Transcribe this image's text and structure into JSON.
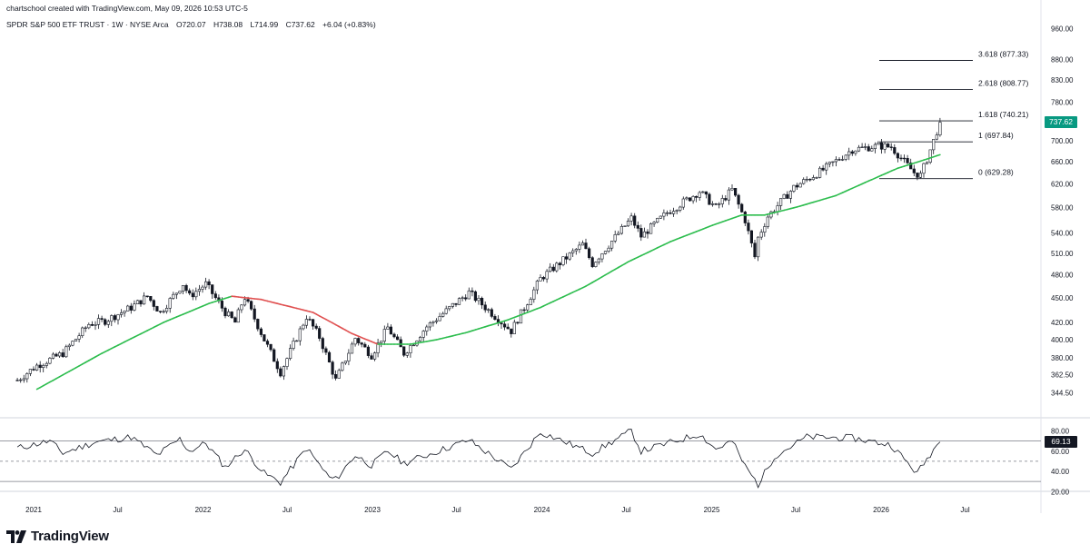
{
  "header": {
    "credit": "chartschool created with TradingView.com, May 09, 2026 10:53 UTC-5",
    "symbol": "SPDR S&P 500 ETF TRUST · 1W · NYSE Arca",
    "open": "O720.07",
    "high": "H738.08",
    "low": "L714.99",
    "close": "C737.62",
    "change": "+6.04 (+0.83%)"
  },
  "brand": {
    "name": "TradingView",
    "icon": "tradingview-logo-icon"
  },
  "colors": {
    "up_candle": "#131722",
    "ma_rising": "#2dbd4e",
    "ma_falling": "#e05050",
    "price_tag": "#089981",
    "rsi_tag": "#131722",
    "fib_line": "#131722"
  },
  "price_tag": "737.62",
  "rsi_tag": "69.13",
  "chart_data": [
    {
      "type": "candlestick",
      "title": "SPDR S&P 500 ETF TRUST · 1W · NYSE Arca",
      "scale": "log",
      "y_ticks": [
        "960.00",
        "880.00",
        "830.00",
        "780.00",
        "740.00",
        "700.00",
        "660.00",
        "620.00",
        "580.00",
        "540.00",
        "510.00",
        "480.00",
        "450.00",
        "420.00",
        "400.00",
        "380.00",
        "362.50",
        "344.50"
      ],
      "x_ticks": [
        "2021",
        "Jul",
        "2022",
        "Jul",
        "2023",
        "Jul",
        "2024",
        "Jul",
        "2025",
        "Jul",
        "2026",
        "Jul"
      ],
      "x_tick_dates": [
        "2021-01-01",
        "2021-07-01",
        "2022-01-01",
        "2022-07-01",
        "2023-01-01",
        "2023-07-01",
        "2024-01-01",
        "2024-07-01",
        "2025-01-01",
        "2025-07-01",
        "2026-01-01",
        "2026-07-01"
      ],
      "price_path": [
        [
          "2020-11-27",
          357
        ],
        [
          "2021-01-08",
          372
        ],
        [
          "2021-03-05",
          385
        ],
        [
          "2021-04-30",
          418
        ],
        [
          "2021-06-04",
          422
        ],
        [
          "2021-07-30",
          438
        ],
        [
          "2021-09-03",
          452
        ],
        [
          "2021-10-01",
          432
        ],
        [
          "2021-11-19",
          468
        ],
        [
          "2021-12-03",
          452
        ],
        [
          "2022-01-07",
          468
        ],
        [
          "2022-02-18",
          432
        ],
        [
          "2022-03-11",
          420
        ],
        [
          "2022-03-31",
          452
        ],
        [
          "2022-05-13",
          400
        ],
        [
          "2022-06-17",
          365
        ],
        [
          "2022-08-12",
          427
        ],
        [
          "2022-09-09",
          403
        ],
        [
          "2022-10-14",
          357
        ],
        [
          "2022-11-25",
          402
        ],
        [
          "2022-12-30",
          383
        ],
        [
          "2023-02-03",
          414
        ],
        [
          "2023-03-10",
          385
        ],
        [
          "2023-04-28",
          415
        ],
        [
          "2023-07-28",
          457
        ],
        [
          "2023-10-27",
          410
        ],
        [
          "2023-12-29",
          475
        ],
        [
          "2024-03-29",
          523
        ],
        [
          "2024-04-19",
          495
        ],
        [
          "2024-07-12",
          563
        ],
        [
          "2024-08-02",
          535
        ],
        [
          "2024-09-27",
          572
        ],
        [
          "2024-12-06",
          607
        ],
        [
          "2025-01-10",
          580
        ],
        [
          "2025-02-14",
          610
        ],
        [
          "2025-03-14",
          560
        ],
        [
          "2025-04-04",
          505
        ],
        [
          "2025-04-11",
          533
        ],
        [
          "2025-05-02",
          566
        ],
        [
          "2025-06-27",
          614
        ],
        [
          "2025-08-29",
          645
        ],
        [
          "2025-10-31",
          683
        ],
        [
          "2025-12-26",
          690
        ],
        [
          "2026-01-23",
          688
        ],
        [
          "2026-02-20",
          660
        ],
        [
          "2026-03-13",
          640
        ],
        [
          "2026-03-27",
          635
        ],
        [
          "2026-04-10",
          665
        ],
        [
          "2026-04-24",
          700
        ],
        [
          "2026-05-08",
          737.62
        ]
      ],
      "moving_average": [
        [
          "2021-01-08",
          348
        ],
        [
          "2021-05-28",
          385
        ],
        [
          "2021-10-08",
          420
        ],
        [
          "2022-01-14",
          443
        ],
        [
          "2022-03-04",
          452
        ],
        [
          "2022-05-06",
          448
        ],
        [
          "2022-08-26",
          432
        ],
        [
          "2022-11-18",
          407
        ],
        [
          "2023-01-13",
          395
        ],
        [
          "2023-03-24",
          395
        ],
        [
          "2023-05-19",
          400
        ],
        [
          "2023-07-21",
          408
        ],
        [
          "2023-10-20",
          423
        ],
        [
          "2023-12-29",
          438
        ],
        [
          "2024-04-05",
          465
        ],
        [
          "2024-07-05",
          498
        ],
        [
          "2024-10-04",
          527
        ],
        [
          "2025-01-03",
          552
        ],
        [
          "2025-03-07",
          568
        ],
        [
          "2025-04-25",
          568
        ],
        [
          "2025-07-04",
          581
        ],
        [
          "2025-09-26",
          600
        ],
        [
          "2025-12-05",
          625
        ],
        [
          "2026-02-06",
          648
        ],
        [
          "2026-03-27",
          661
        ],
        [
          "2026-05-08",
          673
        ]
      ],
      "fibonacci": [
        {
          "ratio": "0",
          "price": 629.28,
          "label": "0 (629.28)"
        },
        {
          "ratio": "1",
          "price": 697.84,
          "label": "1 (697.84)"
        },
        {
          "ratio": "1.618",
          "price": 740.21,
          "label": "1.618 (740.21)"
        },
        {
          "ratio": "2.618",
          "price": 808.77,
          "label": "2.618 (808.77)"
        },
        {
          "ratio": "3.618",
          "price": 877.33,
          "label": "3.618 (877.33)"
        }
      ],
      "last_price": 737.62
    },
    {
      "type": "line",
      "y_ticks": [
        "80.00",
        "60.00",
        "40.00",
        "20.00"
      ],
      "levels": [
        70,
        50,
        30
      ],
      "rsi_path": [
        [
          "2020-11-27",
          63
        ],
        [
          "2021-02-05",
          70
        ],
        [
          "2021-03-05",
          58
        ],
        [
          "2021-05-14",
          69
        ],
        [
          "2021-07-30",
          74
        ],
        [
          "2021-09-24",
          56
        ],
        [
          "2021-11-12",
          72
        ],
        [
          "2021-12-03",
          60
        ],
        [
          "2022-01-07",
          68
        ],
        [
          "2022-02-18",
          44
        ],
        [
          "2022-03-31",
          62
        ],
        [
          "2022-05-13",
          38
        ],
        [
          "2022-06-17",
          29
        ],
        [
          "2022-08-12",
          63
        ],
        [
          "2022-09-30",
          34
        ],
        [
          "2022-10-14",
          32
        ],
        [
          "2022-11-25",
          56
        ],
        [
          "2022-12-30",
          46
        ],
        [
          "2023-02-03",
          60
        ],
        [
          "2023-03-10",
          48
        ],
        [
          "2023-07-28",
          71
        ],
        [
          "2023-10-27",
          42
        ],
        [
          "2023-12-29",
          79
        ],
        [
          "2024-04-19",
          58
        ],
        [
          "2024-07-12",
          80
        ],
        [
          "2024-08-02",
          60
        ],
        [
          "2024-12-06",
          77
        ],
        [
          "2025-01-10",
          62
        ],
        [
          "2025-02-14",
          70
        ],
        [
          "2025-03-14",
          45
        ],
        [
          "2025-04-11",
          27
        ],
        [
          "2025-05-16",
          55
        ],
        [
          "2025-07-25",
          74
        ],
        [
          "2025-10-31",
          73
        ],
        [
          "2026-01-23",
          66
        ],
        [
          "2026-02-20",
          52
        ],
        [
          "2026-03-20",
          38
        ],
        [
          "2026-04-24",
          62
        ],
        [
          "2026-05-08",
          69.13
        ]
      ]
    }
  ]
}
